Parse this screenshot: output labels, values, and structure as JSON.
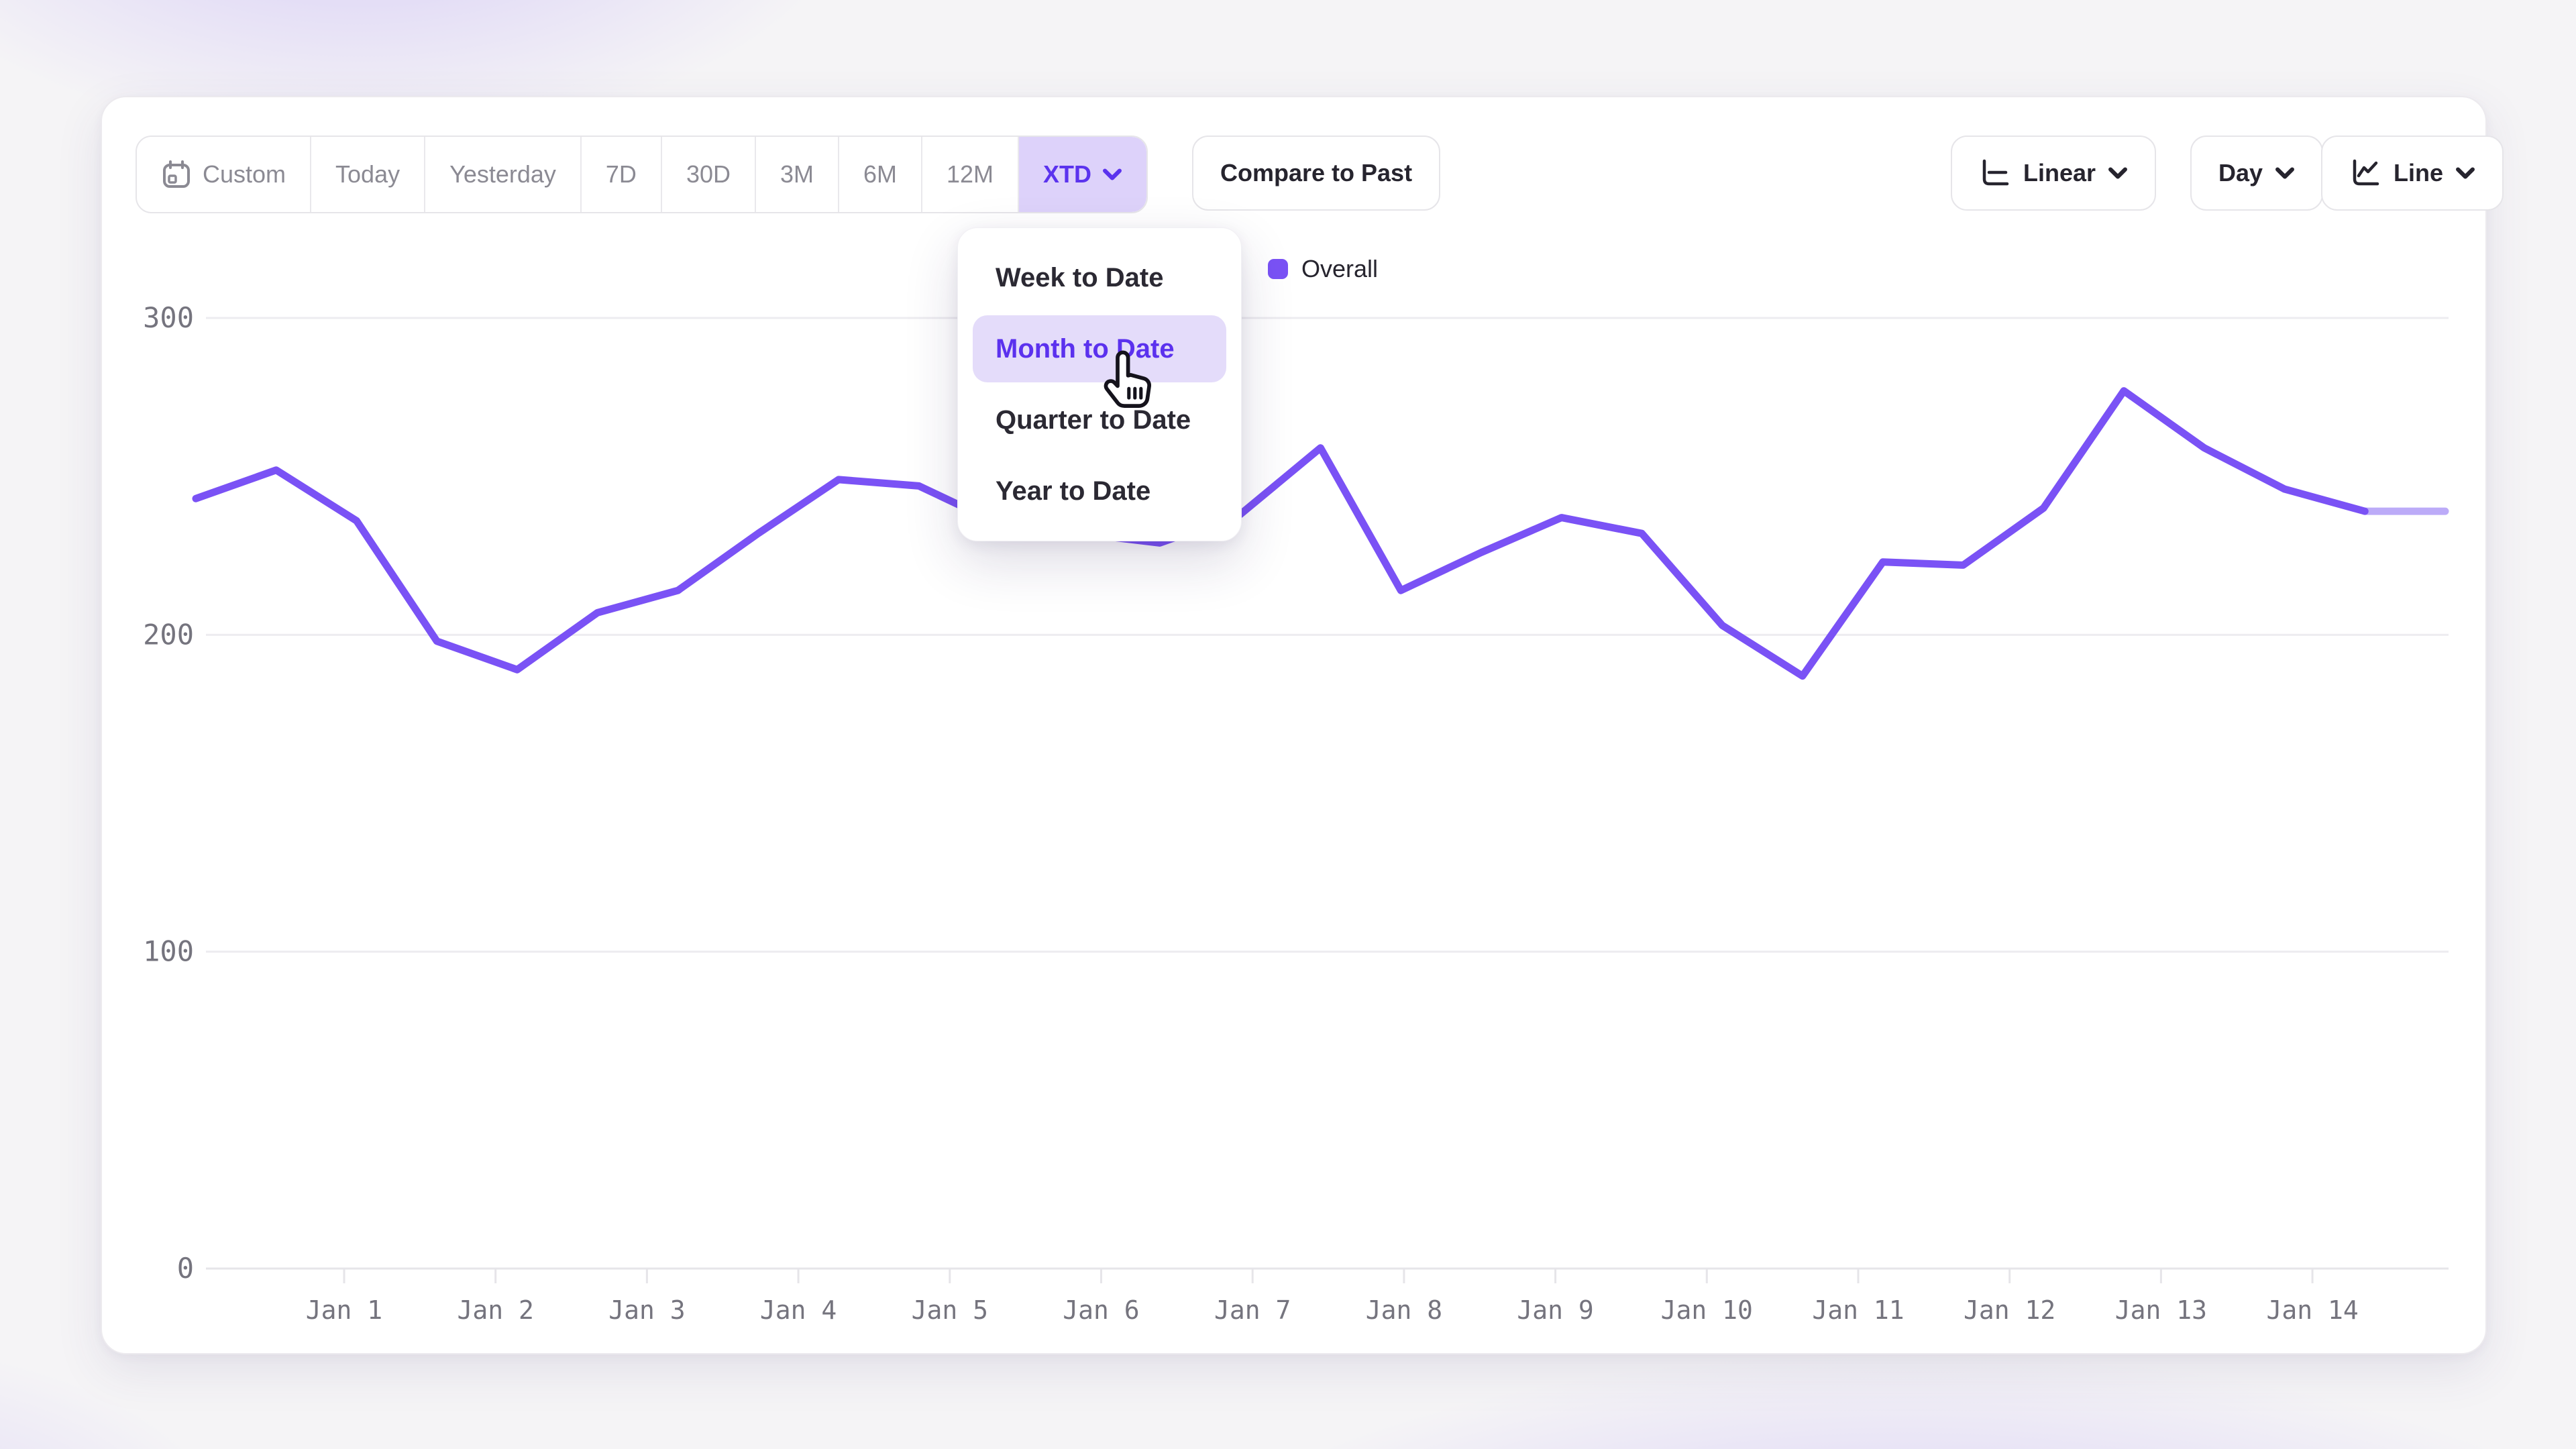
{
  "colors": {
    "accent": "#7a52f5",
    "accent_projected": "#bcabf8",
    "selected_range_bg": "#ddd2fa",
    "selected_range_text": "#5b33ee",
    "menu_highlight_bg": "#e4dcfa",
    "menu_highlight_text": "#5b31ee",
    "grid": "#edecf0",
    "axis": "#e6e5e9",
    "tick_text": "#75747e",
    "button_text_dark": "#26242e",
    "button_text_gray": "#8b8a93",
    "card_bg": "#ffffff"
  },
  "toolbar": {
    "range_buttons": [
      {
        "label": "Custom",
        "icon": "calendar-icon",
        "selected": false
      },
      {
        "label": "Today",
        "selected": false
      },
      {
        "label": "Yesterday",
        "selected": false
      },
      {
        "label": "7D",
        "selected": false
      },
      {
        "label": "30D",
        "selected": false
      },
      {
        "label": "3M",
        "selected": false
      },
      {
        "label": "6M",
        "selected": false
      },
      {
        "label": "12M",
        "selected": false
      },
      {
        "label": "XTD",
        "selected": true,
        "has_chevron": true
      }
    ],
    "compare_label": "Compare to Past",
    "scale_button": {
      "label": "Linear",
      "icon": "linear-scale-icon",
      "has_chevron": true
    },
    "granularity_button": {
      "label": "Day",
      "has_chevron": true
    },
    "chart_type_button": {
      "label": "Line",
      "icon": "line-chart-icon",
      "has_chevron": true
    }
  },
  "dropdown": {
    "items": [
      {
        "label": "Week to Date",
        "highlighted": false
      },
      {
        "label": "Month to Date",
        "highlighted": true
      },
      {
        "label": "Quarter to Date",
        "highlighted": false
      },
      {
        "label": "Year to Date",
        "highlighted": false
      }
    ]
  },
  "legend": {
    "label": "Overall"
  },
  "chart_data": {
    "type": "line",
    "series": [
      {
        "name": "Overall",
        "values": [
          243,
          252,
          236,
          198,
          189,
          207,
          214,
          232,
          249,
          247,
          235,
          232,
          229,
          238,
          259,
          214,
          226,
          237,
          232,
          203,
          187,
          223,
          222,
          240,
          277,
          259,
          246,
          239,
          239
        ]
      }
    ],
    "xtick_labels": [
      "Jan 1",
      "Jan 2",
      "Jan 3",
      "Jan 4",
      "Jan 5",
      "Jan 6",
      "Jan 7",
      "Jan 8",
      "Jan 9",
      "Jan 10",
      "Jan 11",
      "Jan 12",
      "Jan 13",
      "Jan 14"
    ],
    "ytick_labels": [
      "0",
      "100",
      "200",
      "300"
    ],
    "yticks": [
      0,
      100,
      200,
      300
    ],
    "ylim": [
      0,
      320
    ],
    "grid": "horizontal",
    "legend_position": "top-center",
    "projected_last_segment": true
  }
}
